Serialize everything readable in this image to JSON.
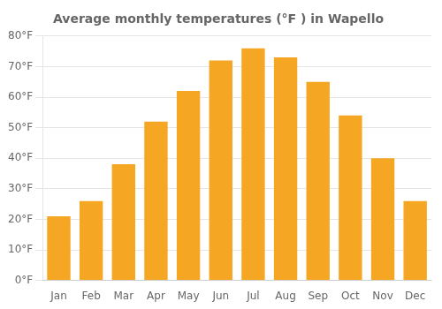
{
  "chart_data": {
    "type": "bar",
    "title": "Average monthly temperatures (°F ) in Wapello",
    "categories": [
      "Jan",
      "Feb",
      "Mar",
      "Apr",
      "May",
      "Jun",
      "Jul",
      "Aug",
      "Sep",
      "Oct",
      "Nov",
      "Dec"
    ],
    "values": [
      21,
      26,
      38,
      52,
      62,
      72,
      76,
      73,
      65,
      54,
      40,
      26
    ],
    "color": "#F5A623",
    "ylim": [
      0,
      80
    ],
    "yticks": [
      {
        "value": 0,
        "label": "0°F"
      },
      {
        "value": 10,
        "label": "10°F"
      },
      {
        "value": 20,
        "label": "20°F"
      },
      {
        "value": 30,
        "label": "30°F"
      },
      {
        "value": 40,
        "label": "40°F"
      },
      {
        "value": 50,
        "label": "50°F"
      },
      {
        "value": 60,
        "label": "60°F"
      },
      {
        "value": 70,
        "label": "70°F"
      },
      {
        "value": 80,
        "label": "80°F"
      }
    ],
    "grid": true
  }
}
